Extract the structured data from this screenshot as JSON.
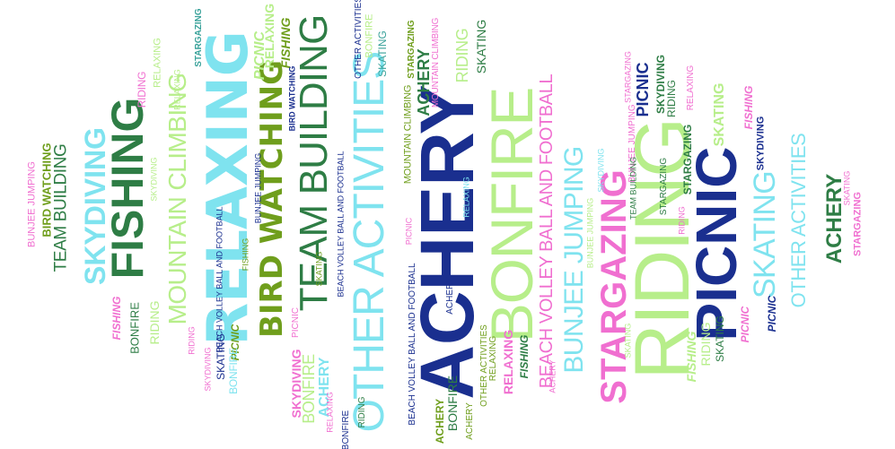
{
  "title": "",
  "colors": {
    "navy": "#1a2f8f",
    "dark_green": "#2e7d45",
    "olive": "#6f9e1c",
    "light_green": "#b7ee8a",
    "cyan": "#7fe3ef",
    "pink": "#f06fd0",
    "teal": "#3aa29a"
  },
  "words": [
    {
      "text": "ACHERY"
    },
    {
      "text": "BONFIRE"
    },
    {
      "text": "RIDING"
    },
    {
      "text": "PICNIC"
    },
    {
      "text": "RELAXING"
    },
    {
      "text": "FISHING"
    },
    {
      "text": "OTHER ACTIVITIES"
    },
    {
      "text": "TEAM BUILDING"
    },
    {
      "text": "BIRD WATCHING"
    },
    {
      "text": "STARGAZING"
    },
    {
      "text": "SKYDIVING"
    },
    {
      "text": "MOUNTAIN CLIMBING"
    },
    {
      "text": "BUNJEE JUMPING"
    },
    {
      "text": "BEACH VOLLEY BALL AND FOOTBALL"
    },
    {
      "text": "SKATING"
    },
    {
      "text": "OTHER ACTIVITIES"
    },
    {
      "text": "TEAM BUILDING"
    },
    {
      "text": "BIRD WATCHING"
    },
    {
      "text": "BUNJEE JUMPING"
    },
    {
      "text": "ACHERY"
    },
    {
      "text": "SKATING"
    },
    {
      "text": "PICNIC"
    },
    {
      "text": "RIDING"
    },
    {
      "text": "STARGAZING"
    },
    {
      "text": "FISHING"
    },
    {
      "text": "SKYDIVING"
    },
    {
      "text": "RELAXING"
    },
    {
      "text": "BONFIRE"
    },
    {
      "text": "PICNIC"
    },
    {
      "text": "SKYDIVING"
    },
    {
      "text": "RIDING"
    },
    {
      "text": "SKATING"
    },
    {
      "text": "STARGAZING"
    },
    {
      "text": "RELAXING"
    },
    {
      "text": "RIDING"
    },
    {
      "text": "MOUNTAIN CLIMBING"
    },
    {
      "text": "OTHER ACTIVITIES"
    },
    {
      "text": "BEACH VOLLEY BALL AND FOOTBALL"
    },
    {
      "text": "FISHING"
    },
    {
      "text": "STARGAZING"
    },
    {
      "text": "RELAXING"
    },
    {
      "text": "ACHERY"
    },
    {
      "text": "FISHING"
    },
    {
      "text": "RIDING"
    },
    {
      "text": "SKATING"
    },
    {
      "text": "BONFIRE"
    },
    {
      "text": "PICNIC"
    },
    {
      "text": "RIDING"
    },
    {
      "text": "SKATING"
    },
    {
      "text": "RELAXING"
    },
    {
      "text": "BONFIRE"
    },
    {
      "text": "ACHERY"
    },
    {
      "text": "RELAXING"
    },
    {
      "text": "ACHERY"
    },
    {
      "text": "SKYDIVING"
    },
    {
      "text": "BONFIRE"
    },
    {
      "text": "RELAXING"
    },
    {
      "text": "SKATING"
    },
    {
      "text": "PICNIC"
    },
    {
      "text": "BONFIRE"
    },
    {
      "text": "BUNJEE JUMPING"
    },
    {
      "text": "RIDING"
    },
    {
      "text": "FISHING"
    },
    {
      "text": "RELAXING"
    },
    {
      "text": "ACHERY"
    },
    {
      "text": "STARGAZING"
    },
    {
      "text": "SKATING"
    },
    {
      "text": "PICNIC"
    },
    {
      "text": "SKYDIVING"
    },
    {
      "text": "STARGAZING"
    },
    {
      "text": "RIDING"
    },
    {
      "text": "RELAXING"
    },
    {
      "text": "PICNIC"
    },
    {
      "text": "FISHING"
    },
    {
      "text": "BEACH VOLLEY BALL AND FOOTBALL"
    },
    {
      "text": "RIDING"
    },
    {
      "text": "BONFIRE"
    },
    {
      "text": "ACHERY"
    },
    {
      "text": "OTHER ACTIVITIES"
    },
    {
      "text": "FISHING"
    },
    {
      "text": "SKATING"
    },
    {
      "text": "PICNIC"
    },
    {
      "text": "SKYDIVING"
    },
    {
      "text": "ACHERY"
    },
    {
      "text": "STARGAZING"
    },
    {
      "text": "SKATING"
    }
  ]
}
